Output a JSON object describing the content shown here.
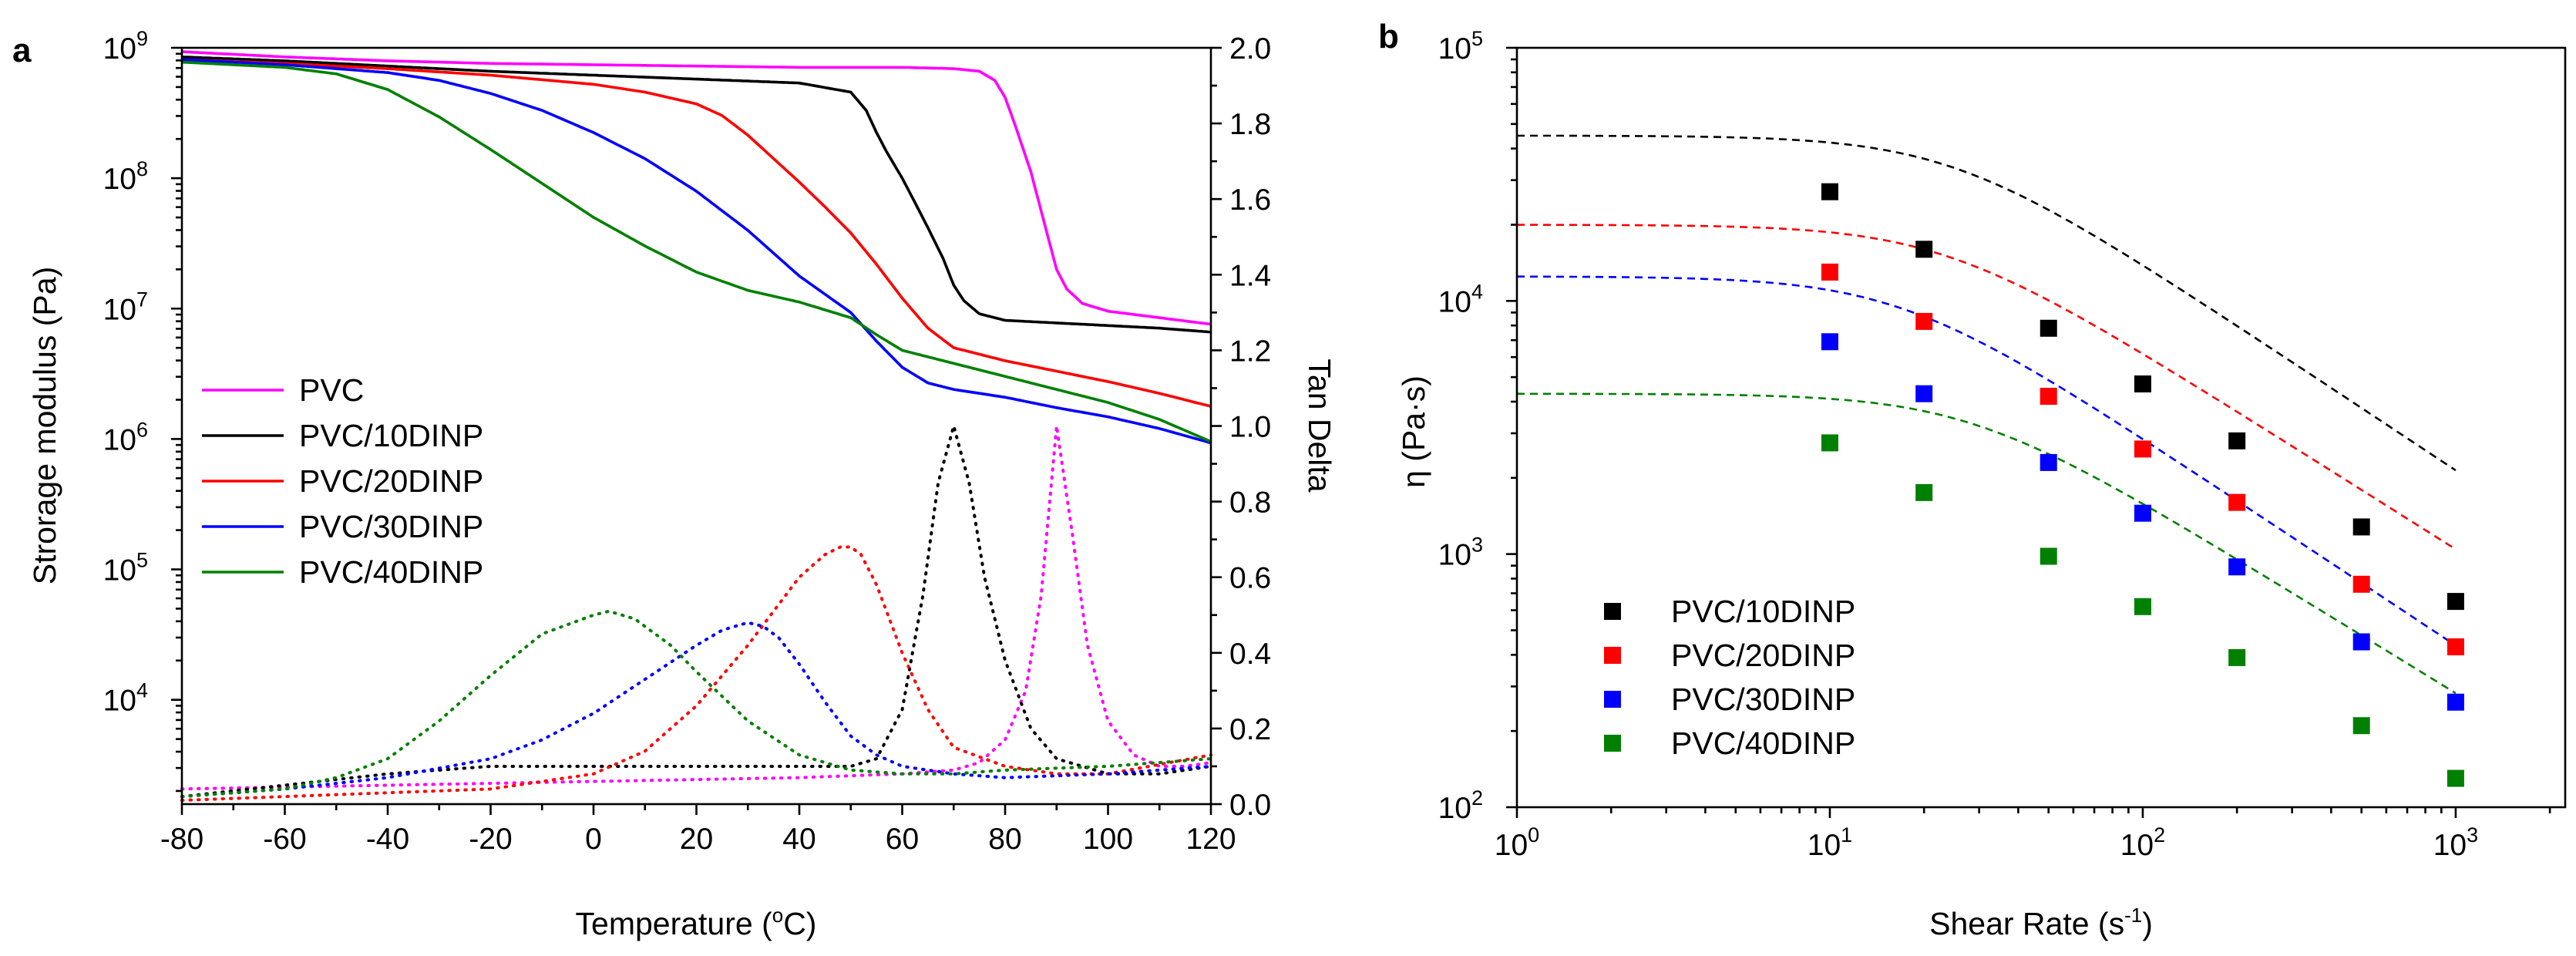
{
  "panel_labels": {
    "a": "a",
    "b": "b"
  },
  "chart_data": [
    {
      "panel": "a",
      "type": "line",
      "title": "",
      "xlabel_text": "Temperature (",
      "xlabel_sup": "o",
      "xlabel_unit": "C)",
      "ylabel": "Strorage modulus (Pa)",
      "y2label": "Tan Delta",
      "xlim": [
        -80,
        120
      ],
      "ylim_log10": [
        3.2,
        9.0
      ],
      "y2lim": [
        0,
        2.0
      ],
      "x_ticks": [
        -80,
        -60,
        -40,
        -20,
        0,
        20,
        40,
        60,
        80,
        100,
        120
      ],
      "x_tick_labels": [
        "-80",
        "-60",
        "-40",
        "-20",
        "0",
        "20",
        "40",
        "60",
        "80",
        "100",
        "120"
      ],
      "y_ticks_log10": [
        4,
        5,
        6,
        7,
        8,
        9
      ],
      "y_tick_base": "10",
      "y_tick_exps": [
        "4",
        "5",
        "6",
        "7",
        "8",
        "9"
      ],
      "y2_ticks": [
        0.0,
        0.2,
        0.4,
        0.6,
        0.8,
        1.0,
        1.2,
        1.4,
        1.6,
        1.8,
        2.0
      ],
      "y2_tick_labels": [
        "0.0",
        "0.2",
        "0.4",
        "0.6",
        "0.8",
        "1.0",
        "1.2",
        "1.4",
        "1.6",
        "1.8",
        "2.0"
      ],
      "legend": [
        "PVC",
        "PVC/10DINP",
        "PVC/20DINP",
        "PVC/30DINP",
        "PVC/40DINP"
      ],
      "legend_position": "center-left",
      "series": [
        {
          "name": "PVC",
          "color": "#ff00ff",
          "modulus_x": [
            -80,
            -60,
            -40,
            -20,
            0,
            20,
            40,
            60,
            70,
            75,
            78,
            80,
            82,
            85,
            88,
            90,
            92,
            95,
            100,
            110,
            120
          ],
          "modulus_log10": [
            8.97,
            8.93,
            8.9,
            8.88,
            8.87,
            8.86,
            8.85,
            8.85,
            8.84,
            8.82,
            8.75,
            8.62,
            8.4,
            8.05,
            7.6,
            7.3,
            7.15,
            7.04,
            6.98,
            6.93,
            6.88
          ],
          "tan_x": [
            -80,
            -40,
            0,
            40,
            60,
            70,
            75,
            80,
            84,
            87,
            90,
            93,
            96,
            100,
            105,
            110,
            115,
            120
          ],
          "tan_y": [
            0.04,
            0.05,
            0.06,
            0.07,
            0.08,
            0.09,
            0.11,
            0.17,
            0.3,
            0.55,
            1.0,
            0.72,
            0.42,
            0.22,
            0.13,
            0.1,
            0.1,
            0.11
          ]
        },
        {
          "name": "PVC/10DINP",
          "color": "#000000",
          "modulus_x": [
            -80,
            -60,
            -40,
            -20,
            0,
            20,
            40,
            50,
            53,
            55,
            57,
            60,
            62,
            65,
            68,
            70,
            72,
            75,
            80,
            90,
            100,
            110,
            120
          ],
          "modulus_log10": [
            8.93,
            8.9,
            8.86,
            8.82,
            8.79,
            8.76,
            8.73,
            8.66,
            8.52,
            8.35,
            8.2,
            8.0,
            7.85,
            7.62,
            7.38,
            7.18,
            7.06,
            6.96,
            6.91,
            6.89,
            6.87,
            6.85,
            6.82
          ],
          "tan_x": [
            -80,
            -60,
            -40,
            -20,
            0,
            20,
            40,
            50,
            55,
            60,
            64,
            67,
            70,
            73,
            76,
            80,
            85,
            90,
            100,
            110,
            120
          ],
          "tan_y": [
            0.02,
            0.05,
            0.08,
            0.1,
            0.1,
            0.1,
            0.1,
            0.1,
            0.12,
            0.25,
            0.55,
            0.85,
            1.0,
            0.85,
            0.6,
            0.38,
            0.2,
            0.12,
            0.08,
            0.08,
            0.1
          ]
        },
        {
          "name": "PVC/20DINP",
          "color": "#ff0000",
          "modulus_x": [
            -80,
            -60,
            -40,
            -20,
            0,
            10,
            20,
            25,
            30,
            35,
            40,
            45,
            50,
            55,
            60,
            65,
            70,
            80,
            90,
            100,
            110,
            120
          ],
          "modulus_log10": [
            8.91,
            8.88,
            8.84,
            8.79,
            8.72,
            8.66,
            8.57,
            8.48,
            8.33,
            8.15,
            7.97,
            7.78,
            7.58,
            7.34,
            7.08,
            6.85,
            6.7,
            6.6,
            6.52,
            6.44,
            6.35,
            6.25
          ],
          "tan_x": [
            -80,
            -60,
            -40,
            -20,
            -10,
            0,
            10,
            20,
            30,
            40,
            45,
            48,
            50,
            52,
            55,
            60,
            65,
            70,
            80,
            90,
            100,
            120
          ],
          "tan_y": [
            0.01,
            0.02,
            0.03,
            0.04,
            0.06,
            0.08,
            0.14,
            0.26,
            0.42,
            0.6,
            0.66,
            0.68,
            0.68,
            0.66,
            0.58,
            0.4,
            0.25,
            0.15,
            0.1,
            0.08,
            0.08,
            0.13
          ]
        },
        {
          "name": "PVC/30DINP",
          "color": "#0000ff",
          "modulus_x": [
            -80,
            -60,
            -40,
            -30,
            -20,
            -10,
            0,
            10,
            20,
            30,
            40,
            50,
            55,
            60,
            65,
            70,
            80,
            90,
            100,
            110,
            120
          ],
          "modulus_log10": [
            8.91,
            8.87,
            8.81,
            8.75,
            8.65,
            8.52,
            8.35,
            8.15,
            7.9,
            7.6,
            7.25,
            6.97,
            6.75,
            6.55,
            6.43,
            6.38,
            6.32,
            6.24,
            6.17,
            6.08,
            5.97
          ],
          "tan_x": [
            -80,
            -60,
            -40,
            -20,
            -10,
            0,
            10,
            20,
            25,
            30,
            33,
            36,
            40,
            45,
            50,
            55,
            60,
            70,
            80,
            100,
            120
          ],
          "tan_y": [
            0.02,
            0.04,
            0.07,
            0.12,
            0.17,
            0.24,
            0.33,
            0.42,
            0.46,
            0.48,
            0.47,
            0.44,
            0.37,
            0.27,
            0.18,
            0.13,
            0.1,
            0.08,
            0.07,
            0.08,
            0.1
          ]
        },
        {
          "name": "PVC/40DINP",
          "color": "#008000",
          "modulus_x": [
            -80,
            -60,
            -50,
            -40,
            -30,
            -20,
            -10,
            0,
            10,
            20,
            30,
            40,
            50,
            55,
            60,
            70,
            80,
            90,
            100,
            110,
            120
          ],
          "modulus_log10": [
            8.89,
            8.85,
            8.8,
            8.68,
            8.47,
            8.22,
            7.96,
            7.7,
            7.48,
            7.28,
            7.14,
            7.05,
            6.93,
            6.8,
            6.68,
            6.58,
            6.48,
            6.38,
            6.28,
            6.15,
            5.98
          ],
          "tan_x": [
            -80,
            -60,
            -50,
            -40,
            -30,
            -20,
            -10,
            0,
            3,
            8,
            15,
            20,
            30,
            40,
            50,
            60,
            70,
            80,
            100,
            120
          ],
          "tan_y": [
            0.02,
            0.04,
            0.07,
            0.12,
            0.22,
            0.34,
            0.45,
            0.5,
            0.51,
            0.49,
            0.42,
            0.35,
            0.22,
            0.13,
            0.09,
            0.08,
            0.08,
            0.09,
            0.1,
            0.12
          ]
        }
      ]
    },
    {
      "panel": "b",
      "type": "scatter",
      "title": "",
      "xlabel_text": "Shear Rate (s",
      "xlabel_sup": "-1",
      "xlabel_unit": ")",
      "ylabel": "η (Pa·s)",
      "xscale": "log",
      "yscale": "log",
      "xlim_log10": [
        0,
        3.35
      ],
      "ylim_log10": [
        2,
        5
      ],
      "x_ticks_log10": [
        0,
        1,
        2,
        3
      ],
      "x_tick_base": "10",
      "x_tick_exps": [
        "0",
        "1",
        "2",
        "3"
      ],
      "y_ticks_log10": [
        2,
        3,
        4,
        5
      ],
      "y_tick_base": "10",
      "y_tick_exps": [
        "2",
        "3",
        "4",
        "5"
      ],
      "legend": [
        "PVC/10DINP",
        "PVC/20DINP",
        "PVC/30DINP",
        "PVC/40DINP"
      ],
      "legend_position": "bottom-left",
      "x": [
        10,
        20,
        50,
        100,
        200,
        500,
        1000
      ],
      "series": [
        {
          "name": "PVC/10DINP",
          "color": "#000000",
          "values": [
            27000,
            16000,
            7800,
            4700,
            2800,
            1280,
            650
          ],
          "fit_eta0": 45000,
          "fit_tau": 0.041,
          "fit_n": 0.18
        },
        {
          "name": "PVC/20DINP",
          "color": "#ff0000",
          "values": [
            13000,
            8300,
            4200,
            2600,
            1600,
            760,
            430
          ],
          "fit_eta0": 20000,
          "fit_tau": 0.044,
          "fit_n": 0.22
        },
        {
          "name": "PVC/30DINP",
          "color": "#0000ff",
          "values": [
            6900,
            4300,
            2300,
            1450,
            890,
            450,
            260
          ],
          "fit_eta0": 12500,
          "fit_tau": 0.06,
          "fit_n": 0.18
        },
        {
          "name": "PVC/40DINP",
          "color": "#008000",
          "values": [
            2750,
            1750,
            980,
            620,
            390,
            210,
            130
          ],
          "fit_eta0": 4300,
          "fit_tau": 0.036,
          "fit_n": 0.24
        }
      ]
    }
  ]
}
